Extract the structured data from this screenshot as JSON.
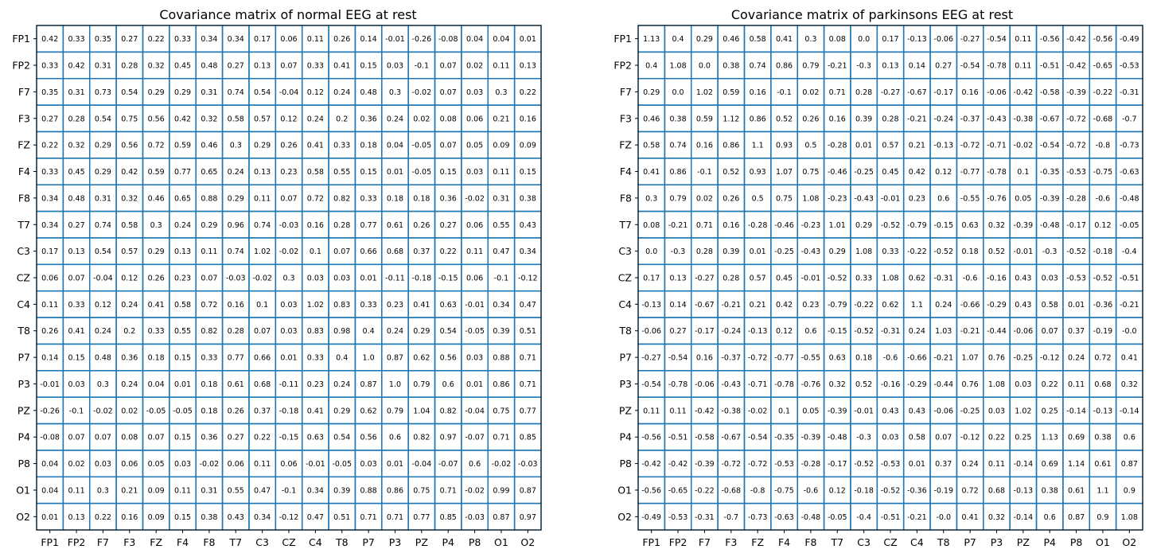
{
  "chart_data": [
    {
      "type": "heatmap",
      "title": "Covariance matrix of normal EEG at rest",
      "x_labels": [
        "FP1",
        "FP2",
        "F7",
        "F3",
        "FZ",
        "F4",
        "F8",
        "T7",
        "C3",
        "CZ",
        "C4",
        "T8",
        "P7",
        "P3",
        "PZ",
        "P4",
        "P8",
        "O1",
        "O2"
      ],
      "y_labels": [
        "FP1",
        "FP2",
        "F7",
        "F3",
        "FZ",
        "F4",
        "F8",
        "T7",
        "C3",
        "CZ",
        "C4",
        "T8",
        "P7",
        "P3",
        "PZ",
        "P4",
        "P8",
        "O1",
        "O2"
      ],
      "values": [
        [
          "0.42",
          "0.33",
          "0.35",
          "0.27",
          "0.22",
          "0.33",
          "0.34",
          "0.34",
          "0.17",
          "0.06",
          "0.11",
          "0.26",
          "0.14",
          "-0.01",
          "-0.26",
          "-0.08",
          "0.04",
          "0.04",
          "0.01"
        ],
        [
          "0.33",
          "0.42",
          "0.31",
          "0.28",
          "0.32",
          "0.45",
          "0.48",
          "0.27",
          "0.13",
          "0.07",
          "0.33",
          "0.41",
          "0.15",
          "0.03",
          "-0.1",
          "0.07",
          "0.02",
          "0.11",
          "0.13"
        ],
        [
          "0.35",
          "0.31",
          "0.73",
          "0.54",
          "0.29",
          "0.29",
          "0.31",
          "0.74",
          "0.54",
          "-0.04",
          "0.12",
          "0.24",
          "0.48",
          "0.3",
          "-0.02",
          "0.07",
          "0.03",
          "0.3",
          "0.22"
        ],
        [
          "0.27",
          "0.28",
          "0.54",
          "0.75",
          "0.56",
          "0.42",
          "0.32",
          "0.58",
          "0.57",
          "0.12",
          "0.24",
          "0.2",
          "0.36",
          "0.24",
          "0.02",
          "0.08",
          "0.06",
          "0.21",
          "0.16"
        ],
        [
          "0.22",
          "0.32",
          "0.29",
          "0.56",
          "0.72",
          "0.59",
          "0.46",
          "0.3",
          "0.29",
          "0.26",
          "0.41",
          "0.33",
          "0.18",
          "0.04",
          "-0.05",
          "0.07",
          "0.05",
          "0.09",
          "0.09"
        ],
        [
          "0.33",
          "0.45",
          "0.29",
          "0.42",
          "0.59",
          "0.77",
          "0.65",
          "0.24",
          "0.13",
          "0.23",
          "0.58",
          "0.55",
          "0.15",
          "0.01",
          "-0.05",
          "0.15",
          "0.03",
          "0.11",
          "0.15"
        ],
        [
          "0.34",
          "0.48",
          "0.31",
          "0.32",
          "0.46",
          "0.65",
          "0.88",
          "0.29",
          "0.11",
          "0.07",
          "0.72",
          "0.82",
          "0.33",
          "0.18",
          "0.18",
          "0.36",
          "-0.02",
          "0.31",
          "0.38"
        ],
        [
          "0.34",
          "0.27",
          "0.74",
          "0.58",
          "0.3",
          "0.24",
          "0.29",
          "0.96",
          "0.74",
          "-0.03",
          "0.16",
          "0.28",
          "0.77",
          "0.61",
          "0.26",
          "0.27",
          "0.06",
          "0.55",
          "0.43"
        ],
        [
          "0.17",
          "0.13",
          "0.54",
          "0.57",
          "0.29",
          "0.13",
          "0.11",
          "0.74",
          "1.02",
          "-0.02",
          "0.1",
          "0.07",
          "0.66",
          "0.68",
          "0.37",
          "0.22",
          "0.11",
          "0.47",
          "0.34"
        ],
        [
          "0.06",
          "0.07",
          "-0.04",
          "0.12",
          "0.26",
          "0.23",
          "0.07",
          "-0.03",
          "-0.02",
          "0.3",
          "0.03",
          "0.03",
          "0.01",
          "-0.11",
          "-0.18",
          "-0.15",
          "0.06",
          "-0.1",
          "-0.12"
        ],
        [
          "0.11",
          "0.33",
          "0.12",
          "0.24",
          "0.41",
          "0.58",
          "0.72",
          "0.16",
          "0.1",
          "0.03",
          "1.02",
          "0.83",
          "0.33",
          "0.23",
          "0.41",
          "0.63",
          "-0.01",
          "0.34",
          "0.47"
        ],
        [
          "0.26",
          "0.41",
          "0.24",
          "0.2",
          "0.33",
          "0.55",
          "0.82",
          "0.28",
          "0.07",
          "0.03",
          "0.83",
          "0.98",
          "0.4",
          "0.24",
          "0.29",
          "0.54",
          "-0.05",
          "0.39",
          "0.51"
        ],
        [
          "0.14",
          "0.15",
          "0.48",
          "0.36",
          "0.18",
          "0.15",
          "0.33",
          "0.77",
          "0.66",
          "0.01",
          "0.33",
          "0.4",
          "1.0",
          "0.87",
          "0.62",
          "0.56",
          "0.03",
          "0.88",
          "0.71"
        ],
        [
          "-0.01",
          "0.03",
          "0.3",
          "0.24",
          "0.04",
          "0.01",
          "0.18",
          "0.61",
          "0.68",
          "-0.11",
          "0.23",
          "0.24",
          "0.87",
          "1.0",
          "0.79",
          "0.6",
          "0.01",
          "0.86",
          "0.71"
        ],
        [
          "-0.26",
          "-0.1",
          "-0.02",
          "0.02",
          "-0.05",
          "-0.05",
          "0.18",
          "0.26",
          "0.37",
          "-0.18",
          "0.41",
          "0.29",
          "0.62",
          "0.79",
          "1.04",
          "0.82",
          "-0.04",
          "0.75",
          "0.77"
        ],
        [
          "-0.08",
          "0.07",
          "0.07",
          "0.08",
          "0.07",
          "0.15",
          "0.36",
          "0.27",
          "0.22",
          "-0.15",
          "0.63",
          "0.54",
          "0.56",
          "0.6",
          "0.82",
          "0.97",
          "-0.07",
          "0.71",
          "0.85"
        ],
        [
          "0.04",
          "0.02",
          "0.03",
          "0.06",
          "0.05",
          "0.03",
          "-0.02",
          "0.06",
          "0.11",
          "0.06",
          "-0.01",
          "-0.05",
          "0.03",
          "0.01",
          "-0.04",
          "-0.07",
          "0.6",
          "-0.02",
          "-0.03"
        ],
        [
          "0.04",
          "0.11",
          "0.3",
          "0.21",
          "0.09",
          "0.11",
          "0.31",
          "0.55",
          "0.47",
          "-0.1",
          "0.34",
          "0.39",
          "0.88",
          "0.86",
          "0.75",
          "0.71",
          "-0.02",
          "0.99",
          "0.87"
        ],
        [
          "0.01",
          "0.13",
          "0.22",
          "0.16",
          "0.09",
          "0.15",
          "0.38",
          "0.43",
          "0.34",
          "-0.12",
          "0.47",
          "0.51",
          "0.71",
          "0.71",
          "0.77",
          "0.85",
          "-0.03",
          "0.87",
          "0.97"
        ]
      ],
      "grid": true,
      "grid_color": "#1f77b4",
      "legend": "none"
    },
    {
      "type": "heatmap",
      "title": "Covariance matrix of parkinsons EEG at rest",
      "x_labels": [
        "FP1",
        "FP2",
        "F7",
        "F3",
        "FZ",
        "F4",
        "F8",
        "T7",
        "C3",
        "CZ",
        "C4",
        "T8",
        "P7",
        "P3",
        "PZ",
        "P4",
        "P8",
        "O1",
        "O2"
      ],
      "y_labels": [
        "FP1",
        "FP2",
        "F7",
        "F3",
        "FZ",
        "F4",
        "F8",
        "T7",
        "C3",
        "CZ",
        "C4",
        "T8",
        "P7",
        "P3",
        "PZ",
        "P4",
        "P8",
        "O1",
        "O2"
      ],
      "values": [
        [
          "1.13",
          "0.4",
          "0.29",
          "0.46",
          "0.58",
          "0.41",
          "0.3",
          "0.08",
          "0.0",
          "0.17",
          "-0.13",
          "-0.06",
          "-0.27",
          "-0.54",
          "0.11",
          "-0.56",
          "-0.42",
          "-0.56",
          "-0.49"
        ],
        [
          "0.4",
          "1.08",
          "0.0",
          "0.38",
          "0.74",
          "0.86",
          "0.79",
          "-0.21",
          "-0.3",
          "0.13",
          "0.14",
          "0.27",
          "-0.54",
          "-0.78",
          "0.11",
          "-0.51",
          "-0.42",
          "-0.65",
          "-0.53"
        ],
        [
          "0.29",
          "0.0",
          "1.02",
          "0.59",
          "0.16",
          "-0.1",
          "0.02",
          "0.71",
          "0.28",
          "-0.27",
          "-0.67",
          "-0.17",
          "0.16",
          "-0.06",
          "-0.42",
          "-0.58",
          "-0.39",
          "-0.22",
          "-0.31"
        ],
        [
          "0.46",
          "0.38",
          "0.59",
          "1.12",
          "0.86",
          "0.52",
          "0.26",
          "0.16",
          "0.39",
          "0.28",
          "-0.21",
          "-0.24",
          "-0.37",
          "-0.43",
          "-0.38",
          "-0.67",
          "-0.72",
          "-0.68",
          "-0.7"
        ],
        [
          "0.58",
          "0.74",
          "0.16",
          "0.86",
          "1.1",
          "0.93",
          "0.5",
          "-0.28",
          "0.01",
          "0.57",
          "0.21",
          "-0.13",
          "-0.72",
          "-0.71",
          "-0.02",
          "-0.54",
          "-0.72",
          "-0.8",
          "-0.73"
        ],
        [
          "0.41",
          "0.86",
          "-0.1",
          "0.52",
          "0.93",
          "1.07",
          "0.75",
          "-0.46",
          "-0.25",
          "0.45",
          "0.42",
          "0.12",
          "-0.77",
          "-0.78",
          "0.1",
          "-0.35",
          "-0.53",
          "-0.75",
          "-0.63"
        ],
        [
          "0.3",
          "0.79",
          "0.02",
          "0.26",
          "0.5",
          "0.75",
          "1.08",
          "-0.23",
          "-0.43",
          "-0.01",
          "0.23",
          "0.6",
          "-0.55",
          "-0.76",
          "0.05",
          "-0.39",
          "-0.28",
          "-0.6",
          "-0.48"
        ],
        [
          "0.08",
          "-0.21",
          "0.71",
          "0.16",
          "-0.28",
          "-0.46",
          "-0.23",
          "1.01",
          "0.29",
          "-0.52",
          "-0.79",
          "-0.15",
          "0.63",
          "0.32",
          "-0.39",
          "-0.48",
          "-0.17",
          "0.12",
          "-0.05"
        ],
        [
          "0.0",
          "-0.3",
          "0.28",
          "0.39",
          "0.01",
          "-0.25",
          "-0.43",
          "0.29",
          "1.08",
          "0.33",
          "-0.22",
          "-0.52",
          "0.18",
          "0.52",
          "-0.01",
          "-0.3",
          "-0.52",
          "-0.18",
          "-0.4"
        ],
        [
          "0.17",
          "0.13",
          "-0.27",
          "0.28",
          "0.57",
          "0.45",
          "-0.01",
          "-0.52",
          "0.33",
          "1.08",
          "0.62",
          "-0.31",
          "-0.6",
          "-0.16",
          "0.43",
          "0.03",
          "-0.53",
          "-0.52",
          "-0.51"
        ],
        [
          "-0.13",
          "0.14",
          "-0.67",
          "-0.21",
          "0.21",
          "0.42",
          "0.23",
          "-0.79",
          "-0.22",
          "0.62",
          "1.1",
          "0.24",
          "-0.66",
          "-0.29",
          "0.43",
          "0.58",
          "0.01",
          "-0.36",
          "-0.21"
        ],
        [
          "-0.06",
          "0.27",
          "-0.17",
          "-0.24",
          "-0.13",
          "0.12",
          "0.6",
          "-0.15",
          "-0.52",
          "-0.31",
          "0.24",
          "1.03",
          "-0.21",
          "-0.44",
          "-0.06",
          "0.07",
          "0.37",
          "-0.19",
          "-0.0"
        ],
        [
          "-0.27",
          "-0.54",
          "0.16",
          "-0.37",
          "-0.72",
          "-0.77",
          "-0.55",
          "0.63",
          "0.18",
          "-0.6",
          "-0.66",
          "-0.21",
          "1.07",
          "0.76",
          "-0.25",
          "-0.12",
          "0.24",
          "0.72",
          "0.41"
        ],
        [
          "-0.54",
          "-0.78",
          "-0.06",
          "-0.43",
          "-0.71",
          "-0.78",
          "-0.76",
          "0.32",
          "0.52",
          "-0.16",
          "-0.29",
          "-0.44",
          "0.76",
          "1.08",
          "0.03",
          "0.22",
          "0.11",
          "0.68",
          "0.32"
        ],
        [
          "0.11",
          "0.11",
          "-0.42",
          "-0.38",
          "-0.02",
          "0.1",
          "0.05",
          "-0.39",
          "-0.01",
          "0.43",
          "0.43",
          "-0.06",
          "-0.25",
          "0.03",
          "1.02",
          "0.25",
          "-0.14",
          "-0.13",
          "-0.14"
        ],
        [
          "-0.56",
          "-0.51",
          "-0.58",
          "-0.67",
          "-0.54",
          "-0.35",
          "-0.39",
          "-0.48",
          "-0.3",
          "0.03",
          "0.58",
          "0.07",
          "-0.12",
          "0.22",
          "0.25",
          "1.13",
          "0.69",
          "0.38",
          "0.6"
        ],
        [
          "-0.42",
          "-0.42",
          "-0.39",
          "-0.72",
          "-0.72",
          "-0.53",
          "-0.28",
          "-0.17",
          "-0.52",
          "-0.53",
          "0.01",
          "0.37",
          "0.24",
          "0.11",
          "-0.14",
          "0.69",
          "1.14",
          "0.61",
          "0.87"
        ],
        [
          "-0.56",
          "-0.65",
          "-0.22",
          "-0.68",
          "-0.8",
          "-0.75",
          "-0.6",
          "0.12",
          "-0.18",
          "-0.52",
          "-0.36",
          "-0.19",
          "0.72",
          "0.68",
          "-0.13",
          "0.38",
          "0.61",
          "1.1",
          "0.9"
        ],
        [
          "-0.49",
          "-0.53",
          "-0.31",
          "-0.7",
          "-0.73",
          "-0.63",
          "-0.48",
          "-0.05",
          "-0.4",
          "-0.51",
          "-0.21",
          "-0.0",
          "0.41",
          "0.32",
          "-0.14",
          "0.6",
          "0.87",
          "0.9",
          "1.08"
        ]
      ],
      "grid": true,
      "grid_color": "#1f77b4",
      "legend": "none"
    }
  ]
}
